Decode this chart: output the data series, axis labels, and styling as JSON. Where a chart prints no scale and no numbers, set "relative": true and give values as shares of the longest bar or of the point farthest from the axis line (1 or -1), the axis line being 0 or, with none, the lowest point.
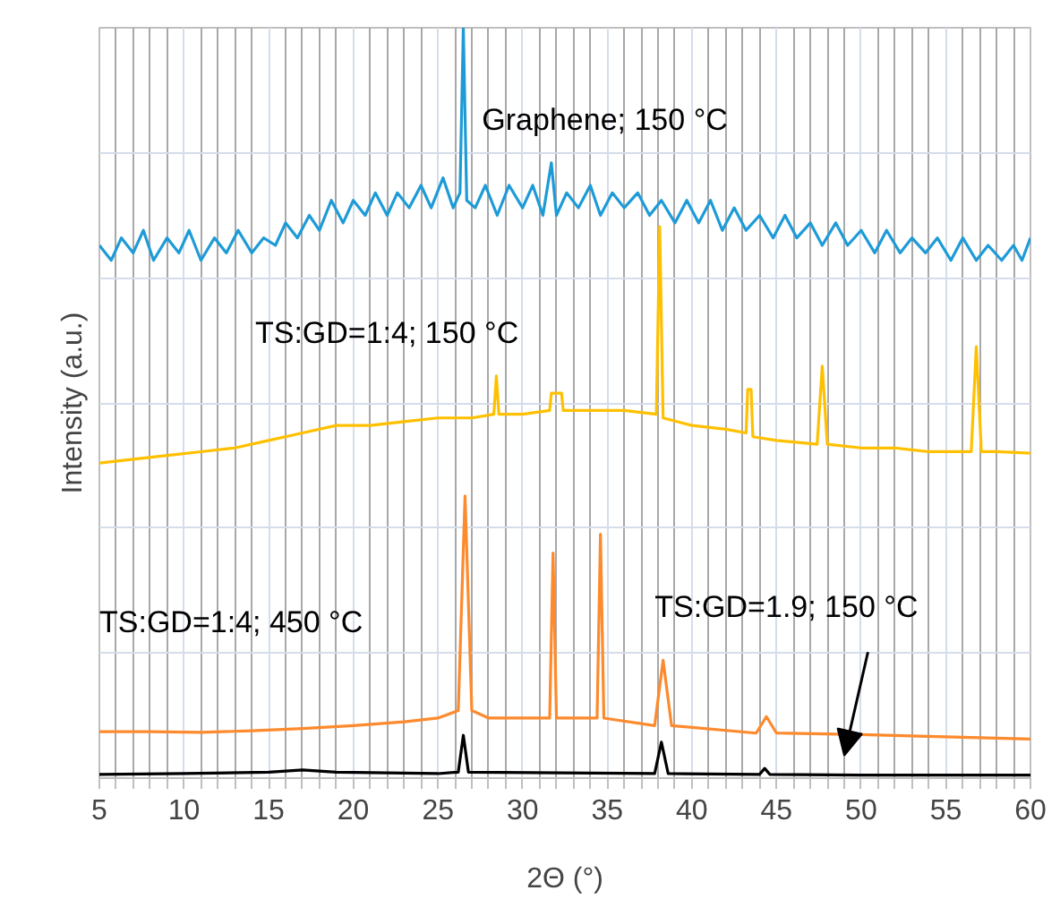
{
  "chart_data": {
    "type": "line",
    "relative": true,
    "xlabel": "2Θ (°)",
    "ylabel": "Intensity (a.u.)",
    "xlim": [
      5,
      60
    ],
    "xticks": [
      5,
      10,
      15,
      20,
      25,
      30,
      35,
      40,
      45,
      50,
      55,
      60
    ],
    "grid": true,
    "legend": false,
    "marker": "none",
    "line_style": "solid",
    "series": [
      {
        "name": "Graphene; 150 °C",
        "color": "#1e9bd7",
        "x": [
          5,
          5.7,
          6.3,
          7,
          7.6,
          8.2,
          9,
          9.7,
          10.3,
          11,
          11.8,
          12.5,
          13.2,
          14,
          14.7,
          15.4,
          16,
          16.7,
          17.4,
          18,
          18.7,
          19.4,
          20,
          20.7,
          21.3,
          22,
          22.6,
          23.3,
          24,
          24.6,
          25.3,
          25.9,
          26.3,
          26.5,
          26.7,
          27.2,
          27.8,
          28.5,
          29.2,
          30,
          30.6,
          31.2,
          31.7,
          32,
          32.6,
          33.3,
          34,
          34.6,
          35.3,
          36,
          36.8,
          37.5,
          38.2,
          39,
          39.7,
          40.4,
          41.1,
          41.8,
          42.5,
          43.2,
          44,
          44.8,
          45.5,
          46.2,
          47,
          47.7,
          48.5,
          49.2,
          50,
          50.8,
          51.5,
          52.3,
          53,
          53.8,
          54.5,
          55.3,
          56,
          56.8,
          57.5,
          58.3,
          59,
          59.5,
          60
        ],
        "values": [
          0.71,
          0.69,
          0.72,
          0.7,
          0.73,
          0.69,
          0.72,
          0.7,
          0.73,
          0.69,
          0.72,
          0.7,
          0.73,
          0.7,
          0.72,
          0.71,
          0.74,
          0.72,
          0.75,
          0.73,
          0.77,
          0.74,
          0.77,
          0.75,
          0.78,
          0.75,
          0.78,
          0.76,
          0.79,
          0.76,
          0.8,
          0.76,
          0.78,
          1.0,
          0.77,
          0.76,
          0.79,
          0.75,
          0.79,
          0.76,
          0.79,
          0.75,
          0.82,
          0.75,
          0.78,
          0.76,
          0.79,
          0.75,
          0.78,
          0.76,
          0.78,
          0.75,
          0.77,
          0.74,
          0.77,
          0.74,
          0.77,
          0.73,
          0.76,
          0.73,
          0.75,
          0.72,
          0.75,
          0.72,
          0.74,
          0.71,
          0.74,
          0.71,
          0.73,
          0.7,
          0.73,
          0.7,
          0.72,
          0.7,
          0.72,
          0.69,
          0.72,
          0.69,
          0.71,
          0.69,
          0.71,
          0.69,
          0.72
        ]
      },
      {
        "name": "TS:GD=1:4; 150 °C",
        "color": "#ffc000",
        "x": [
          5,
          7,
          9,
          11,
          13,
          15,
          17,
          19,
          21,
          23,
          25,
          27,
          28.3,
          28.45,
          28.6,
          30,
          31.6,
          31.7,
          32.3,
          32.4,
          34,
          36,
          37.9,
          38.1,
          38.3,
          40,
          42,
          43.2,
          43.3,
          43.5,
          43.6,
          45,
          47.4,
          47.7,
          48,
          50,
          52,
          54,
          56.5,
          56.8,
          57.1,
          58,
          60
        ],
        "values": [
          0.42,
          0.425,
          0.43,
          0.435,
          0.44,
          0.45,
          0.46,
          0.47,
          0.47,
          0.475,
          0.48,
          0.48,
          0.485,
          0.536,
          0.485,
          0.485,
          0.49,
          0.513,
          0.513,
          0.49,
          0.49,
          0.49,
          0.485,
          0.735,
          0.48,
          0.47,
          0.465,
          0.46,
          0.518,
          0.518,
          0.455,
          0.45,
          0.445,
          0.549,
          0.445,
          0.44,
          0.44,
          0.435,
          0.435,
          0.575,
          0.435,
          0.435,
          0.433
        ]
      },
      {
        "name": "TS:GD=1:4; 450 °C",
        "color": "#fd8a2d",
        "x": [
          5,
          8,
          11,
          14,
          17,
          20,
          23,
          25,
          26.2,
          26.6,
          27,
          28,
          31.6,
          31.8,
          32,
          34.4,
          34.6,
          34.8,
          37.8,
          38.3,
          38.8,
          43.8,
          44.4,
          45,
          50,
          55,
          60
        ],
        "values": [
          0.062,
          0.062,
          0.061,
          0.063,
          0.066,
          0.07,
          0.075,
          0.08,
          0.09,
          0.376,
          0.09,
          0.08,
          0.08,
          0.3,
          0.08,
          0.08,
          0.325,
          0.08,
          0.07,
          0.157,
          0.07,
          0.06,
          0.082,
          0.06,
          0.058,
          0.055,
          0.052
        ]
      },
      {
        "name": "TS:GD=1.9; 150 °C",
        "color": "#000000",
        "x": [
          5,
          10,
          15,
          17,
          19,
          25,
          26.2,
          26.5,
          26.8,
          37.8,
          38.2,
          38.6,
          44,
          44.3,
          44.6,
          50,
          60
        ],
        "values": [
          0.005,
          0.006,
          0.008,
          0.011,
          0.008,
          0.006,
          0.008,
          0.057,
          0.008,
          0.006,
          0.048,
          0.006,
          0.005,
          0.013,
          0.005,
          0.004,
          0.004
        ]
      }
    ]
  }
}
